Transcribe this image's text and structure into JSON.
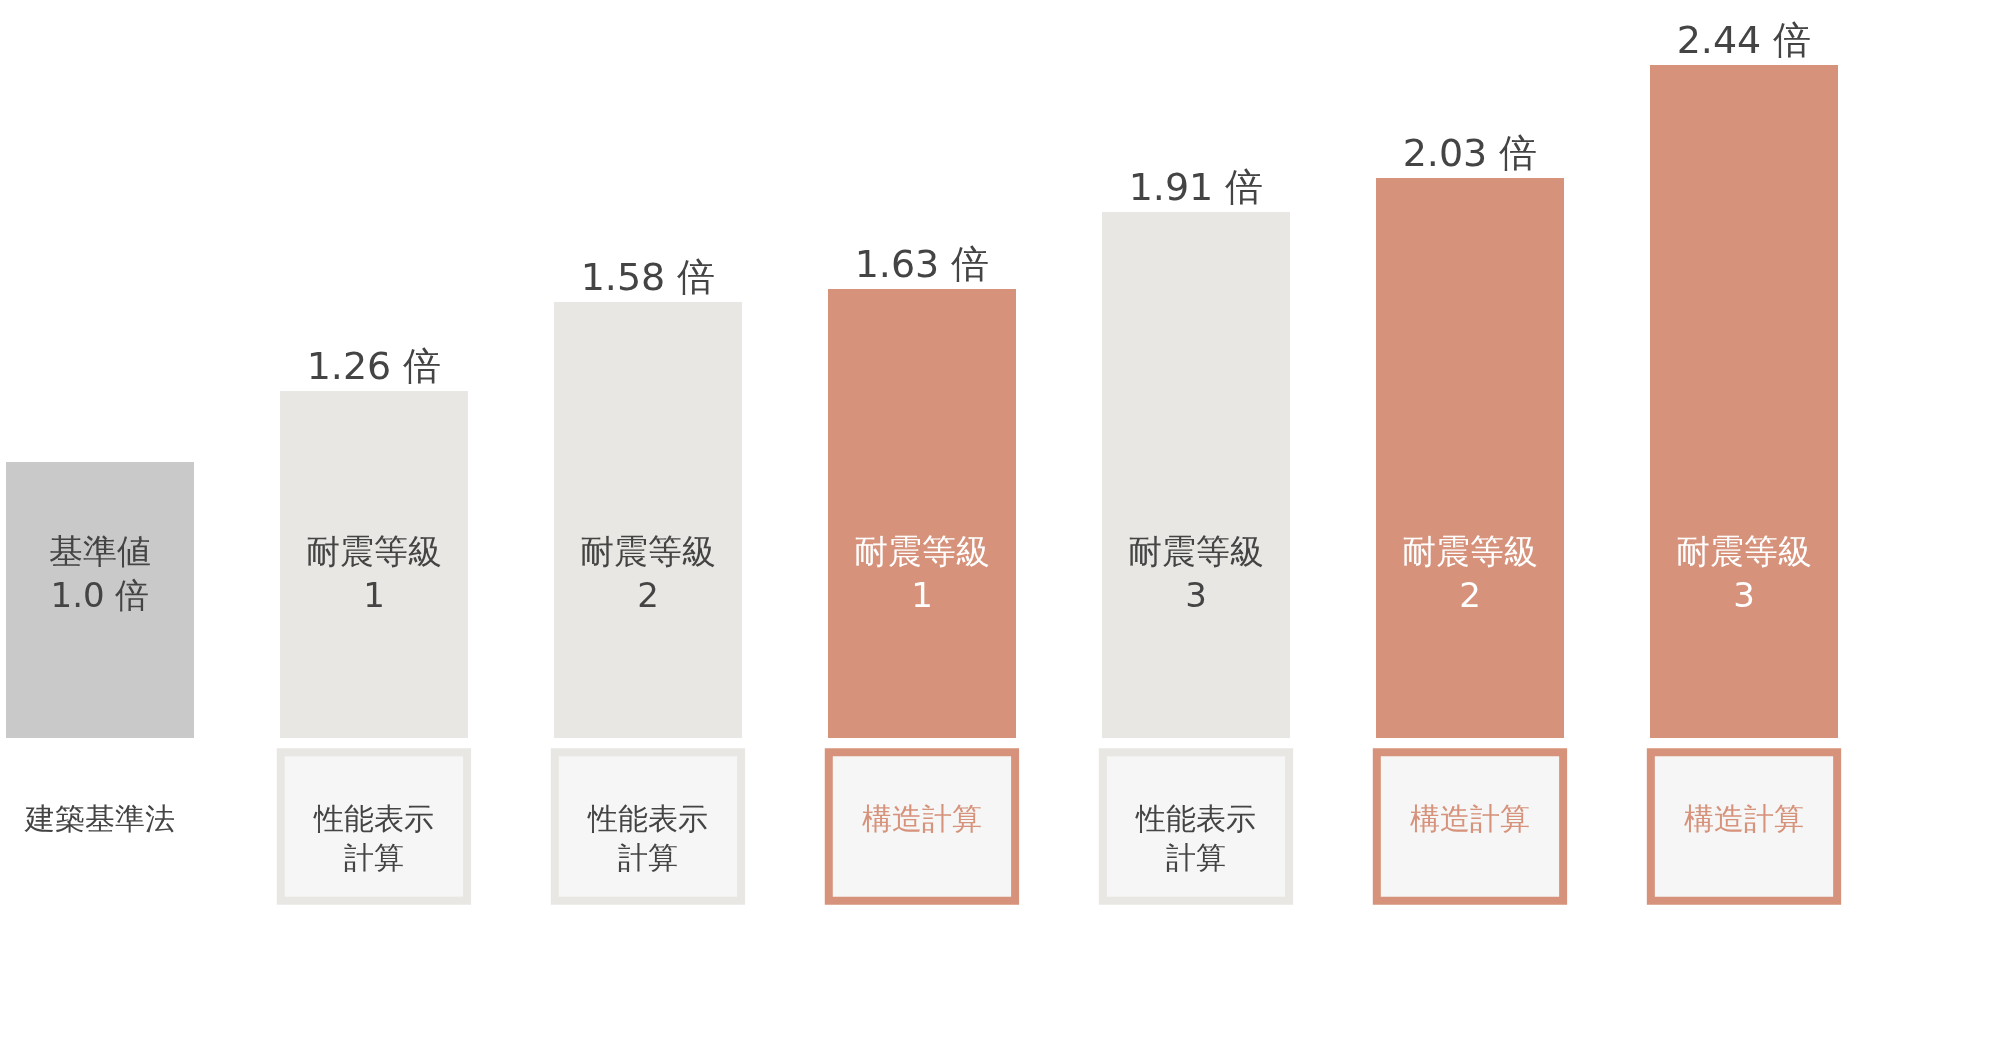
{
  "chart_data": {
    "type": "bar",
    "categories": [
      "建築基準法",
      "性能表示計算",
      "性能表示計算",
      "構造計算",
      "性能表示計算",
      "構造計算",
      "構造計算"
    ],
    "values": [
      1.0,
      1.26,
      1.58,
      1.63,
      1.91,
      2.03,
      2.44
    ],
    "colors": [
      "#c8c9c8",
      "#e8e7e3",
      "#e8e7e3",
      "#d6927b",
      "#e8e7e3",
      "#d6927b",
      "#d6927b"
    ],
    "value_labels": [
      null,
      "1.26 倍",
      "1.58 倍",
      "1.63 倍",
      "1.91 倍",
      "2.03 倍",
      "2.44 倍"
    ],
    "annotations": [
      "基準値\n1.0 倍",
      "耐震等級\n1",
      "耐震等級\n2",
      "耐震等級\n1",
      "耐震等級\n3",
      "耐震等級\n2",
      "耐震等級\n3"
    ]
  }
}
